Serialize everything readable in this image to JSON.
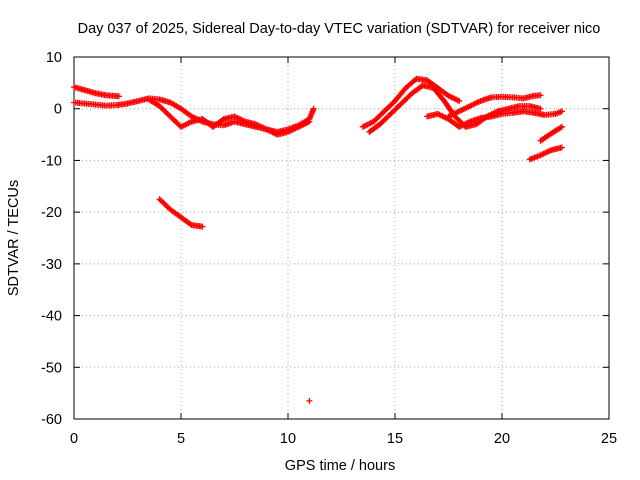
{
  "chart_data": {
    "type": "scatter",
    "title": "Day 037 of 2025, Sidereal Day-to-day VTEC variation (SDTVAR) for receiver nico",
    "xlabel": "GPS time / hours",
    "ylabel": "SDTVAR / TECUs",
    "xlim": [
      0,
      25
    ],
    "ylim": [
      -60,
      10
    ],
    "xticks": [
      "0",
      "5",
      "10",
      "15",
      "20",
      "25"
    ],
    "yticks": [
      "10",
      "0",
      "-10",
      "-20",
      "-30",
      "-40",
      "-50",
      "-60"
    ],
    "grid": true,
    "marker_color": "#ff0000",
    "series": [
      {
        "name": "s1",
        "x": [
          0,
          0.5,
          1.0,
          1.5,
          2.1
        ],
        "y": [
          4.2,
          3.6,
          3.0,
          2.6,
          2.4
        ]
      },
      {
        "name": "s2",
        "x": [
          0,
          0.5,
          1.0,
          1.5,
          2.0,
          2.5,
          3.0,
          3.5,
          4.0,
          4.5,
          5.0,
          5.5,
          6.0,
          6.5,
          7.0,
          7.5,
          8.0,
          8.5,
          9.0,
          9.5,
          10.0,
          10.5,
          11.0,
          11.2
        ],
        "y": [
          1.2,
          1.0,
          0.8,
          0.6,
          0.7,
          1.0,
          1.5,
          2.0,
          1.8,
          1.2,
          0.0,
          -1.5,
          -2.5,
          -3.0,
          -3.2,
          -2.5,
          -3.0,
          -3.5,
          -4.0,
          -4.5,
          -4.0,
          -3.2,
          -2.0,
          0.0
        ]
      },
      {
        "name": "s3",
        "x": [
          3.5,
          4.0,
          4.5,
          5.0,
          5.5,
          6.0,
          6.5,
          7.0,
          7.5,
          8.0,
          8.5,
          9.0,
          9.5,
          10.0,
          10.5,
          11.0
        ],
        "y": [
          1.8,
          0.5,
          -1.5,
          -3.5,
          -2.5,
          -2.0,
          -3.5,
          -2.0,
          -1.5,
          -2.5,
          -3.0,
          -4.0,
          -5.0,
          -4.5,
          -3.5,
          -2.5
        ]
      },
      {
        "name": "s4",
        "x": [
          4.0,
          4.5,
          5.0,
          5.5,
          6.0
        ],
        "y": [
          -17.5,
          -19.5,
          -21.0,
          -22.5,
          -22.8
        ]
      },
      {
        "name": "s5",
        "x": [
          11.0
        ],
        "y": [
          -56.5
        ]
      },
      {
        "name": "s6",
        "x": [
          13.5,
          14.0,
          14.5,
          15.0,
          15.5,
          16.0,
          16.5,
          17.0,
          17.5,
          18.0
        ],
        "y": [
          -3.5,
          -2.5,
          -0.5,
          1.5,
          4.0,
          5.8,
          5.5,
          4.0,
          2.5,
          1.5
        ]
      },
      {
        "name": "s7",
        "x": [
          13.8,
          14.3,
          14.8,
          15.3,
          15.8,
          16.3,
          16.8,
          17.3,
          17.8,
          18.3,
          18.8,
          19.3,
          19.8,
          20.3,
          20.8,
          21.3,
          21.8
        ],
        "y": [
          -4.5,
          -3.0,
          -1.0,
          1.0,
          3.0,
          4.5,
          4.0,
          1.5,
          -1.5,
          -3.5,
          -3.0,
          -1.5,
          -0.5,
          0.0,
          0.5,
          0.5,
          0.0
        ]
      },
      {
        "name": "s8",
        "x": [
          16.5,
          17.0,
          17.5,
          18.0,
          18.5,
          19.0,
          19.5,
          20.0,
          20.5,
          21.0,
          21.5,
          22.0,
          22.5,
          22.8
        ],
        "y": [
          -1.5,
          -1.0,
          -2.0,
          -3.5,
          -2.5,
          -1.8,
          -1.5,
          -1.0,
          -0.8,
          -0.5,
          -0.8,
          -1.2,
          -1.0,
          -0.5
        ]
      },
      {
        "name": "s9",
        "x": [
          17.5,
          18.0,
          18.5,
          19.0,
          19.5,
          20.0,
          20.5,
          21.0,
          21.5,
          21.8
        ],
        "y": [
          -1.5,
          -0.5,
          0.5,
          1.5,
          2.2,
          2.3,
          2.2,
          2.0,
          2.5,
          2.6
        ]
      },
      {
        "name": "s10",
        "x": [
          21.3,
          21.8,
          22.3,
          22.8
        ],
        "y": [
          -9.8,
          -9.0,
          -8.0,
          -7.5
        ]
      },
      {
        "name": "s11",
        "x": [
          21.8,
          22.3,
          22.8
        ],
        "y": [
          -6.2,
          -4.8,
          -3.5
        ]
      }
    ]
  }
}
